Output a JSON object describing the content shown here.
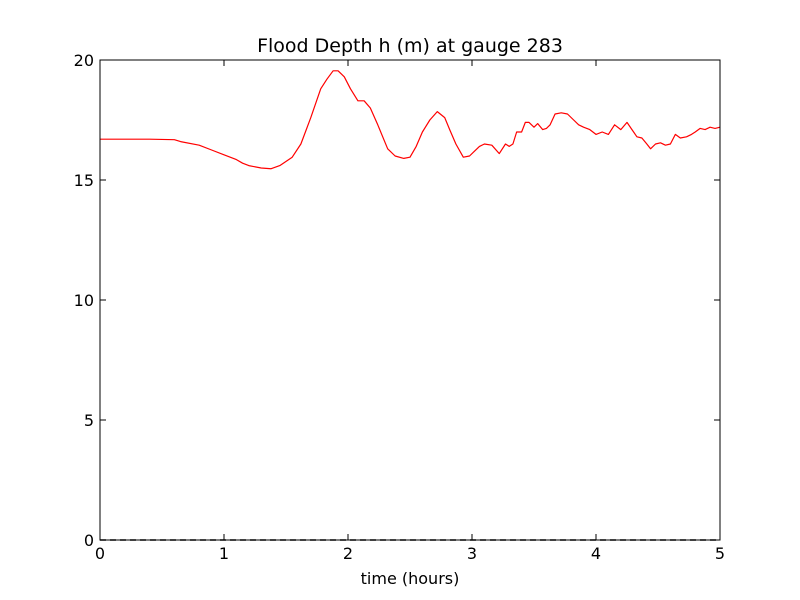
{
  "chart_data": {
    "type": "line",
    "title": "Flood Depth h (m) at gauge 283",
    "xlabel": "time (hours)",
    "ylabel": "",
    "xlim": [
      0,
      5
    ],
    "ylim": [
      0,
      20
    ],
    "xticks": [
      0,
      1,
      2,
      3,
      4,
      5
    ],
    "yticks": [
      0,
      5,
      10,
      15,
      20
    ],
    "xtick_labels": [
      "0",
      "1",
      "2",
      "3",
      "4",
      "5"
    ],
    "ytick_labels": [
      "0",
      "5",
      "10",
      "15",
      "20"
    ],
    "grid": false,
    "series": [
      {
        "color": "#ff0000",
        "style": "solid",
        "x": [
          0,
          0.2,
          0.4,
          0.6,
          0.65,
          0.8,
          0.9,
          1.0,
          1.1,
          1.15,
          1.2,
          1.3,
          1.38,
          1.45,
          1.55,
          1.62,
          1.7,
          1.78,
          1.83,
          1.88,
          1.92,
          1.97,
          2.02,
          2.08,
          2.13,
          2.18,
          2.24,
          2.32,
          2.38,
          2.45,
          2.5,
          2.55,
          2.6,
          2.66,
          2.72,
          2.78,
          2.82,
          2.87,
          2.93,
          2.98,
          3.02,
          3.06,
          3.1,
          3.16,
          3.22,
          3.27,
          3.3,
          3.33,
          3.36,
          3.4,
          3.43,
          3.46,
          3.5,
          3.53,
          3.57,
          3.6,
          3.63,
          3.67,
          3.72,
          3.77,
          3.82,
          3.86,
          3.9,
          3.95,
          4.0,
          4.05,
          4.1,
          4.15,
          4.2,
          4.25,
          4.29,
          4.33,
          4.37,
          4.41,
          4.44,
          4.48,
          4.52,
          4.56,
          4.6,
          4.64,
          4.68,
          4.73,
          4.77,
          4.8,
          4.84,
          4.88,
          4.92,
          4.96,
          5.0
        ],
        "y": [
          16.7,
          16.7,
          16.7,
          16.68,
          16.6,
          16.45,
          16.25,
          16.05,
          15.85,
          15.7,
          15.6,
          15.5,
          15.47,
          15.6,
          15.95,
          16.5,
          17.6,
          18.8,
          19.2,
          19.55,
          19.55,
          19.3,
          18.8,
          18.3,
          18.3,
          18.0,
          17.3,
          16.3,
          16.0,
          15.9,
          15.95,
          16.4,
          17.0,
          17.5,
          17.85,
          17.6,
          17.1,
          16.5,
          15.95,
          16.0,
          16.2,
          16.4,
          16.5,
          16.45,
          16.1,
          16.5,
          16.4,
          16.5,
          17.0,
          17.0,
          17.4,
          17.4,
          17.2,
          17.35,
          17.1,
          17.15,
          17.3,
          17.75,
          17.8,
          17.75,
          17.5,
          17.3,
          17.2,
          17.1,
          16.9,
          17.0,
          16.9,
          17.3,
          17.1,
          17.4,
          17.1,
          16.8,
          16.75,
          16.5,
          16.3,
          16.5,
          16.55,
          16.45,
          16.5,
          16.9,
          16.75,
          16.8,
          16.9,
          17.0,
          17.15,
          17.1,
          17.2,
          17.15,
          17.2
        ]
      },
      {
        "color": "#000000",
        "style": "dashed",
        "x": [
          0,
          5
        ],
        "y": [
          0,
          0
        ]
      }
    ]
  }
}
